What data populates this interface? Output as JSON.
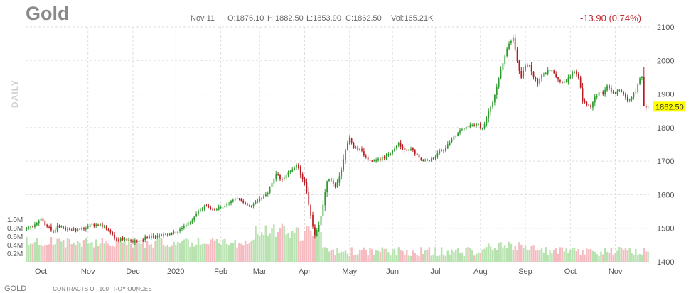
{
  "header": {
    "title": "Gold",
    "date": "Nov 11",
    "open": "O:1876.10",
    "high": "H:1882.50",
    "low": "L:1853.90",
    "close": "C:1862.50",
    "volume": "Vol:165.21K",
    "change": "-13.90 (0.74%)",
    "axis_side_label": "DAILY"
  },
  "footer": {
    "symbol": "GOLD",
    "note": "CONTRACTS OF 100 TROY OUNCES"
  },
  "chart_data": {
    "type": "candlestick",
    "interval": "daily",
    "price_axis": {
      "min": 1400,
      "max": 2100,
      "ticks": [
        1400,
        1500,
        1600,
        1700,
        1800,
        1900,
        2000,
        2100
      ],
      "position": "right"
    },
    "volume_axis": {
      "min": 0,
      "max": 1.2,
      "unit": "M",
      "ticks": [
        "0.2M",
        "0.4M",
        "0.6M",
        "0.8M",
        "1.0M"
      ],
      "tick_values": [
        0.2,
        0.4,
        0.6,
        0.8,
        1.0
      ]
    },
    "x_labels": [
      "Oct",
      "Nov",
      "Dec",
      "2020",
      "Feb",
      "Mar",
      "Apr",
      "May",
      "Jun",
      "Jul",
      "Aug",
      "Sep",
      "Oct",
      "Nov"
    ],
    "last_price_label": "1862.50",
    "grid": true,
    "colors": {
      "up": "#2d9a2d",
      "down": "#b81c22",
      "volume_up": "#b8e3b0",
      "volume_down": "#f4bcc0",
      "last_price_bg": "#ffff00",
      "grid": "#dddddd"
    },
    "anchors": [
      [
        0,
        1500
      ],
      [
        4,
        1511
      ],
      [
        7,
        1530
      ],
      [
        10,
        1505
      ],
      [
        13,
        1487
      ],
      [
        15,
        1507
      ],
      [
        20,
        1497
      ],
      [
        25,
        1496
      ],
      [
        30,
        1505
      ],
      [
        34,
        1511
      ],
      [
        38,
        1505
      ],
      [
        41,
        1488
      ],
      [
        44,
        1463
      ],
      [
        48,
        1468
      ],
      [
        54,
        1461
      ],
      [
        59,
        1473
      ],
      [
        65,
        1478
      ],
      [
        70,
        1484
      ],
      [
        75,
        1497
      ],
      [
        80,
        1517
      ],
      [
        84,
        1552
      ],
      [
        86,
        1560
      ],
      [
        88,
        1567
      ],
      [
        91,
        1555
      ],
      [
        95,
        1563
      ],
      [
        99,
        1573
      ],
      [
        103,
        1587
      ],
      [
        106,
        1576
      ],
      [
        109,
        1566
      ],
      [
        112,
        1578
      ],
      [
        114,
        1589
      ],
      [
        118,
        1605
      ],
      [
        120,
        1635
      ],
      [
        122,
        1662
      ],
      [
        125,
        1644
      ],
      [
        127,
        1660
      ],
      [
        130,
        1676
      ],
      [
        132,
        1689
      ],
      [
        134,
        1660
      ],
      [
        136,
        1635
      ],
      [
        138,
        1570
      ],
      [
        140,
        1505
      ],
      [
        141,
        1480
      ],
      [
        143,
        1510
      ],
      [
        145,
        1570
      ],
      [
        147,
        1640
      ],
      [
        149,
        1643
      ],
      [
        151,
        1625
      ],
      [
        154,
        1675
      ],
      [
        156,
        1733
      ],
      [
        158,
        1768
      ],
      [
        160,
        1740
      ],
      [
        163,
        1735
      ],
      [
        166,
        1712
      ],
      [
        170,
        1702
      ],
      [
        173,
        1705
      ],
      [
        176,
        1716
      ],
      [
        179,
        1731
      ],
      [
        182,
        1755
      ],
      [
        185,
        1733
      ],
      [
        188,
        1737
      ],
      [
        191,
        1719
      ],
      [
        194,
        1702
      ],
      [
        196,
        1704
      ],
      [
        199,
        1710
      ],
      [
        202,
        1730
      ],
      [
        205,
        1739
      ],
      [
        208,
        1765
      ],
      [
        211,
        1784
      ],
      [
        214,
        1797
      ],
      [
        217,
        1808
      ],
      [
        220,
        1811
      ],
      [
        223,
        1798
      ],
      [
        226,
        1848
      ],
      [
        229,
        1897
      ],
      [
        232,
        1972
      ],
      [
        235,
        2035
      ],
      [
        238,
        2069
      ],
      [
        240,
        1998
      ],
      [
        242,
        1948
      ],
      [
        244,
        1984
      ],
      [
        246,
        1985
      ],
      [
        248,
        1950
      ],
      [
        250,
        1930
      ],
      [
        252,
        1957
      ],
      [
        254,
        1963
      ],
      [
        256,
        1971
      ],
      [
        258,
        1962
      ],
      [
        260,
        1943
      ],
      [
        262,
        1933
      ],
      [
        264,
        1938
      ],
      [
        266,
        1953
      ],
      [
        268,
        1967
      ],
      [
        270,
        1948
      ],
      [
        272,
        1880
      ],
      [
        274,
        1867
      ],
      [
        276,
        1861
      ],
      [
        278,
        1892
      ],
      [
        280,
        1905
      ],
      [
        282,
        1900
      ],
      [
        284,
        1925
      ],
      [
        286,
        1907
      ],
      [
        288,
        1901
      ],
      [
        290,
        1912
      ],
      [
        292,
        1899
      ],
      [
        294,
        1880
      ],
      [
        296,
        1890
      ],
      [
        298,
        1907
      ],
      [
        300,
        1947
      ],
      [
        301,
        1950
      ],
      [
        302,
        1865
      ],
      [
        304,
        1862.5
      ]
    ]
  }
}
